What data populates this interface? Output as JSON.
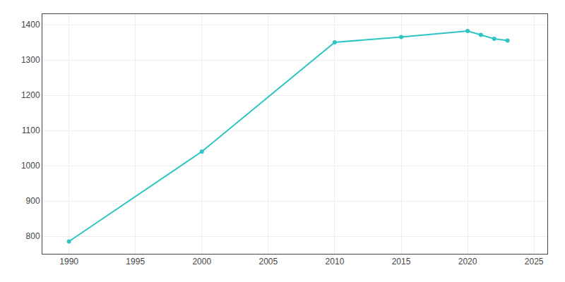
{
  "chart_data": {
    "type": "line",
    "x": [
      1990,
      2000,
      2010,
      2015,
      2020,
      2021,
      2022,
      2023
    ],
    "values": [
      785,
      1040,
      1350,
      1365,
      1382,
      1371,
      1360,
      1355
    ],
    "color": "#2EC4C4",
    "marker": "circle",
    "line_style": "solid",
    "xlim": [
      1988,
      2026
    ],
    "ylim": [
      750,
      1430
    ],
    "xticks": [
      1990,
      1995,
      2000,
      2005,
      2010,
      2015,
      2020,
      2025
    ],
    "yticks": [
      800,
      900,
      1000,
      1100,
      1200,
      1300,
      1400
    ],
    "grid": true
  }
}
